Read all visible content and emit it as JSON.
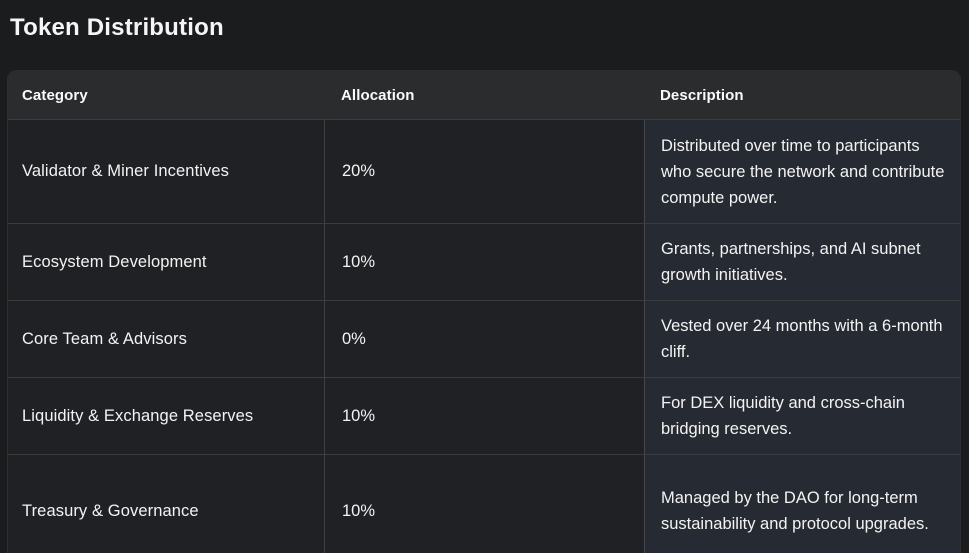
{
  "page": {
    "title": "Token Distribution"
  },
  "table": {
    "columns": [
      "Category",
      "Allocation",
      "Description"
    ],
    "rows": [
      {
        "category": "Validator & Miner Incentives",
        "allocation": "20%",
        "description": "Distributed over time to participants who secure the network and contribute compute power."
      },
      {
        "category": "Ecosystem Development",
        "allocation": "10%",
        "description": "Grants, partnerships, and AI subnet growth initiatives."
      },
      {
        "category": "Core Team & Advisors",
        "allocation": "0%",
        "description": "Vested over 24 months with a 6-month cliff."
      },
      {
        "category": "Liquidity & Exchange Reserves",
        "allocation": "10%",
        "description": "For DEX liquidity and cross-chain bridging reserves."
      },
      {
        "category": "Treasury & Governance",
        "allocation": "10%",
        "description": "Managed by the DAO for long-term sustainability and protocol upgrades."
      }
    ]
  },
  "colors": {
    "page_bg": "#1b1c1e",
    "header_bg": "#2a2c2e",
    "cell_bg": "#1f2124",
    "description_cell_bg": "#262a32",
    "divider": "#474a4d",
    "text": "#f3f3f3"
  }
}
